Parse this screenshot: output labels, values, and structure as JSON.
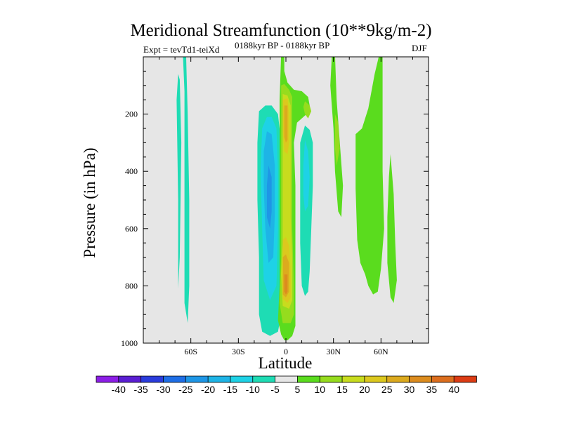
{
  "chart_data": {
    "type": "filled-contour",
    "title": "Meridional Streamfunction (10**9kg/m-2)",
    "left_note": "Expt = tevTd1-teiXd",
    "center_note": "0188kyr BP - 0188kyr BP",
    "right_note": "DJF",
    "xlabel": "Latitude",
    "ylabel": "Pressure (in hPa)",
    "x_range": [
      -90,
      90
    ],
    "y_range": [
      0,
      1000
    ],
    "x_ticks": [
      {
        "value": -60,
        "label": "60S"
      },
      {
        "value": -30,
        "label": "30S"
      },
      {
        "value": 0,
        "label": "0"
      },
      {
        "value": 30,
        "label": "30N"
      },
      {
        "value": 60,
        "label": "60N"
      }
    ],
    "y_ticks": [
      {
        "value": 200,
        "label": "200"
      },
      {
        "value": 400,
        "label": "400"
      },
      {
        "value": 600,
        "label": "600"
      },
      {
        "value": 800,
        "label": "800"
      },
      {
        "value": 1000,
        "label": "1000"
      }
    ],
    "levels": [
      -40,
      -35,
      -30,
      -25,
      -20,
      -15,
      -10,
      -5,
      5,
      10,
      15,
      20,
      25,
      30,
      35,
      40
    ],
    "level_labels": [
      "-40",
      "-35",
      "-30",
      "-25",
      "-20",
      "-15",
      "-10",
      "-5",
      "5",
      "10",
      "15",
      "20",
      "25",
      "30",
      "35",
      "40"
    ],
    "colors": [
      "#8c1ee6",
      "#5a1ed2",
      "#2a3cdc",
      "#1e6ee6",
      "#1e96e6",
      "#1eb4e6",
      "#1ed2e6",
      "#1edcb4",
      "#e6e6e6",
      "#5adc1e",
      "#96dc1e",
      "#c8dc1e",
      "#dcc81e",
      "#dcaa1e",
      "#dc8c1e",
      "#dc6e1e",
      "#dc3c14"
    ],
    "background_color": "#e6e6e6",
    "regions": [
      {
        "name": "sh-polar-strip-1",
        "cat": 7,
        "points": [
          [
            -68,
            60
          ],
          [
            -69,
            150
          ],
          [
            -68,
            500
          ],
          [
            -68,
            810
          ],
          [
            -67,
            700
          ],
          [
            -66,
            300
          ],
          [
            -67,
            80
          ]
        ]
      },
      {
        "name": "sh-polar-strip-2",
        "cat": 7,
        "points": [
          [
            -65,
            -5
          ],
          [
            -63,
            -5
          ],
          [
            -62,
            200
          ],
          [
            -61,
            500
          ],
          [
            -61,
            800
          ],
          [
            -62,
            930
          ],
          [
            -64,
            860
          ],
          [
            -64,
            450
          ],
          [
            -64,
            120
          ]
        ]
      },
      {
        "name": "sh-hadley-outer",
        "cat": 7,
        "points": [
          [
            -13,
            170
          ],
          [
            -17,
            190
          ],
          [
            -18,
            300
          ],
          [
            -18,
            500
          ],
          [
            -17,
            700
          ],
          [
            -17,
            900
          ],
          [
            -15,
            960
          ],
          [
            -10,
            975
          ],
          [
            -5,
            960
          ],
          [
            -3,
            900
          ],
          [
            -3,
            700
          ],
          [
            -3,
            500
          ],
          [
            -3,
            300
          ],
          [
            -5,
            200
          ],
          [
            -9,
            170
          ]
        ]
      },
      {
        "name": "sh-hadley-10",
        "cat": 6,
        "points": [
          [
            -12,
            210
          ],
          [
            -15,
            250
          ],
          [
            -16,
            400
          ],
          [
            -15,
            600
          ],
          [
            -14,
            780
          ],
          [
            -10,
            850
          ],
          [
            -6,
            800
          ],
          [
            -5,
            600
          ],
          [
            -5,
            400
          ],
          [
            -6,
            250
          ],
          [
            -9,
            210
          ]
        ]
      },
      {
        "name": "sh-hadley-15",
        "cat": 5,
        "points": [
          [
            -12,
            260
          ],
          [
            -14,
            330
          ],
          [
            -14,
            450
          ],
          [
            -13,
            600
          ],
          [
            -11,
            720
          ],
          [
            -8,
            700
          ],
          [
            -7,
            550
          ],
          [
            -7,
            380
          ],
          [
            -9,
            270
          ]
        ]
      },
      {
        "name": "sh-hadley-core",
        "cat": 4,
        "points": [
          [
            -11,
            380
          ],
          [
            -12,
            450
          ],
          [
            -12,
            560
          ],
          [
            -10,
            600
          ],
          [
            -9,
            540
          ],
          [
            -9,
            420
          ]
        ]
      },
      {
        "name": "eq-positive-main",
        "cat": 9,
        "points": [
          [
            -3,
            -10
          ],
          [
            -1,
            -10
          ],
          [
            -1,
            50
          ],
          [
            1,
            90
          ],
          [
            5,
            115
          ],
          [
            10,
            120
          ],
          [
            14,
            140
          ],
          [
            15,
            170
          ],
          [
            14,
            195
          ],
          [
            11,
            210
          ],
          [
            7,
            230
          ],
          [
            5,
            300
          ],
          [
            6,
            450
          ],
          [
            6,
            600
          ],
          [
            6,
            800
          ],
          [
            6,
            940
          ],
          [
            4,
            975
          ],
          [
            1,
            990
          ],
          [
            -1,
            990
          ],
          [
            -3,
            970
          ],
          [
            -5,
            920
          ],
          [
            -4,
            800
          ],
          [
            -4,
            600
          ],
          [
            -4,
            450
          ],
          [
            -4,
            300
          ],
          [
            -4,
            150
          ]
        ]
      },
      {
        "name": "eq-positive-15",
        "cat": 10,
        "points": [
          [
            -3,
            100
          ],
          [
            -1,
            95
          ],
          [
            2,
            115
          ],
          [
            4,
            140
          ],
          [
            4,
            200
          ],
          [
            4,
            300
          ],
          [
            4,
            450
          ],
          [
            4,
            600
          ],
          [
            5,
            800
          ],
          [
            5,
            900
          ],
          [
            3,
            930
          ],
          [
            -2,
            930
          ],
          [
            -4,
            860
          ],
          [
            -3,
            700
          ],
          [
            -3,
            500
          ],
          [
            -3,
            300
          ],
          [
            -3,
            180
          ]
        ]
      },
      {
        "name": "eq-positive-20",
        "cat": 11,
        "points": [
          [
            -2,
            130
          ],
          [
            1,
            135
          ],
          [
            3,
            170
          ],
          [
            3,
            300
          ],
          [
            3,
            420
          ],
          [
            3,
            560
          ],
          [
            4,
            700
          ],
          [
            4,
            850
          ],
          [
            2,
            880
          ],
          [
            -2,
            870
          ],
          [
            -3,
            760
          ],
          [
            -2,
            650
          ],
          [
            -2,
            500
          ],
          [
            -2,
            380
          ],
          [
            -2,
            220
          ]
        ]
      },
      {
        "name": "eq-upper-25",
        "cat": 12,
        "points": [
          [
            -2,
            150
          ],
          [
            1,
            145
          ],
          [
            2,
            200
          ],
          [
            2,
            300
          ],
          [
            1,
            340
          ],
          [
            -1,
            330
          ],
          [
            -2,
            260
          ]
        ]
      },
      {
        "name": "eq-upper-30",
        "cat": 13,
        "points": [
          [
            -1,
            170
          ],
          [
            1,
            170
          ],
          [
            1,
            220
          ],
          [
            1,
            290
          ],
          [
            0,
            300
          ],
          [
            -1,
            280
          ],
          [
            -1,
            220
          ]
        ]
      },
      {
        "name": "eq-lower-25",
        "cat": 12,
        "points": [
          [
            -2,
            640
          ],
          [
            0,
            630
          ],
          [
            2,
            660
          ],
          [
            3,
            750
          ],
          [
            3,
            840
          ],
          [
            1,
            860
          ],
          [
            -2,
            845
          ],
          [
            -2,
            750
          ]
        ]
      },
      {
        "name": "eq-lower-30",
        "cat": 13,
        "points": [
          [
            -2,
            700
          ],
          [
            0,
            690
          ],
          [
            2,
            720
          ],
          [
            2,
            820
          ],
          [
            0,
            840
          ],
          [
            -2,
            830
          ],
          [
            -2,
            760
          ]
        ]
      },
      {
        "name": "eq-lower-35",
        "cat": 14,
        "points": [
          [
            -1,
            760
          ],
          [
            1,
            760
          ],
          [
            1,
            820
          ],
          [
            0,
            830
          ],
          [
            -1,
            820
          ]
        ]
      },
      {
        "name": "ne-positive-blob",
        "cat": 10,
        "points": [
          [
            12,
            155
          ],
          [
            15,
            170
          ],
          [
            16,
            190
          ],
          [
            14,
            215
          ],
          [
            12,
            200
          ],
          [
            11,
            175
          ]
        ]
      },
      {
        "name": "nh-neg-cell",
        "cat": 7,
        "points": [
          [
            12,
            240
          ],
          [
            15,
            255
          ],
          [
            17,
            300
          ],
          [
            17,
            450
          ],
          [
            16,
            600
          ],
          [
            15,
            750
          ],
          [
            14,
            820
          ],
          [
            12,
            835
          ],
          [
            10,
            800
          ],
          [
            9,
            650
          ],
          [
            9,
            450
          ],
          [
            9,
            300
          ]
        ]
      },
      {
        "name": "nh-neg-cell-10",
        "cat": 6,
        "points": [
          [
            12,
            290
          ],
          [
            14,
            330
          ],
          [
            15,
            420
          ],
          [
            14,
            520
          ],
          [
            12,
            540
          ],
          [
            11,
            480
          ],
          [
            11,
            380
          ]
        ]
      },
      {
        "name": "nh-upper-strip",
        "cat": 9,
        "points": [
          [
            29,
            -5
          ],
          [
            31,
            -5
          ],
          [
            32,
            150
          ],
          [
            34,
            300
          ],
          [
            36,
            450
          ],
          [
            35,
            560
          ],
          [
            33,
            540
          ],
          [
            31,
            400
          ],
          [
            30,
            250
          ],
          [
            28,
            100
          ]
        ]
      },
      {
        "name": "nh-upper-strip-15",
        "cat": 10,
        "points": [
          [
            31,
            200
          ],
          [
            33,
            230
          ],
          [
            34,
            320
          ],
          [
            32,
            380
          ],
          [
            31,
            320
          ]
        ]
      },
      {
        "name": "nh-midlat-cell",
        "cat": 9,
        "points": [
          [
            44,
            270
          ],
          [
            48,
            250
          ],
          [
            52,
            180
          ],
          [
            56,
            60
          ],
          [
            59,
            -10
          ],
          [
            61,
            -10
          ],
          [
            61,
            200
          ],
          [
            61,
            400
          ],
          [
            62,
            600
          ],
          [
            60,
            740
          ],
          [
            58,
            820
          ],
          [
            55,
            830
          ],
          [
            52,
            800
          ],
          [
            50,
            760
          ],
          [
            47,
            720
          ],
          [
            45,
            640
          ],
          [
            44,
            460
          ]
        ]
      },
      {
        "name": "nh-right-strip",
        "cat": 9,
        "points": [
          [
            66,
            340
          ],
          [
            68,
            480
          ],
          [
            69,
            650
          ],
          [
            70,
            780
          ],
          [
            68,
            860
          ],
          [
            66,
            840
          ],
          [
            64,
            720
          ],
          [
            64,
            560
          ],
          [
            65,
            420
          ]
        ]
      }
    ]
  }
}
